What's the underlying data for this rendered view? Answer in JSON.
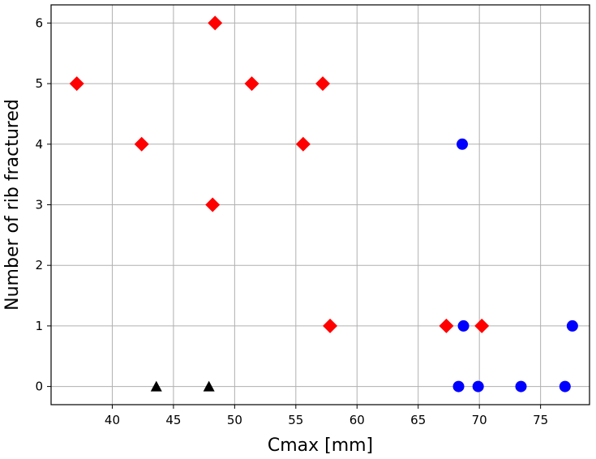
{
  "chart_data": {
    "type": "scatter",
    "title": "",
    "xlabel": "Cmax [mm]",
    "ylabel": "Number of rib fractured",
    "xlim": [
      35,
      79
    ],
    "ylim": [
      -0.3,
      6.3
    ],
    "x_ticks": [
      40,
      45,
      50,
      55,
      60,
      65,
      70,
      75
    ],
    "y_ticks": [
      0,
      1,
      2,
      3,
      4,
      5,
      6
    ],
    "grid": true,
    "legend": "none",
    "series": [
      {
        "marker": "diamond",
        "color": "#ff0000",
        "points": [
          {
            "x": 37.1,
            "y": 5
          },
          {
            "x": 42.4,
            "y": 4
          },
          {
            "x": 48.2,
            "y": 3
          },
          {
            "x": 48.4,
            "y": 6
          },
          {
            "x": 51.4,
            "y": 5
          },
          {
            "x": 55.6,
            "y": 4
          },
          {
            "x": 57.2,
            "y": 5
          },
          {
            "x": 57.8,
            "y": 1
          },
          {
            "x": 67.3,
            "y": 1
          },
          {
            "x": 70.2,
            "y": 1
          }
        ]
      },
      {
        "marker": "circle",
        "color": "#0000ff",
        "points": [
          {
            "x": 68.3,
            "y": 0
          },
          {
            "x": 68.6,
            "y": 4
          },
          {
            "x": 68.7,
            "y": 1
          },
          {
            "x": 69.9,
            "y": 0
          },
          {
            "x": 73.4,
            "y": 0
          },
          {
            "x": 77.0,
            "y": 0
          },
          {
            "x": 77.6,
            "y": 1
          }
        ]
      },
      {
        "marker": "triangle",
        "color": "#000000",
        "points": [
          {
            "x": 43.6,
            "y": 0
          },
          {
            "x": 47.9,
            "y": 0
          }
        ]
      }
    ]
  }
}
